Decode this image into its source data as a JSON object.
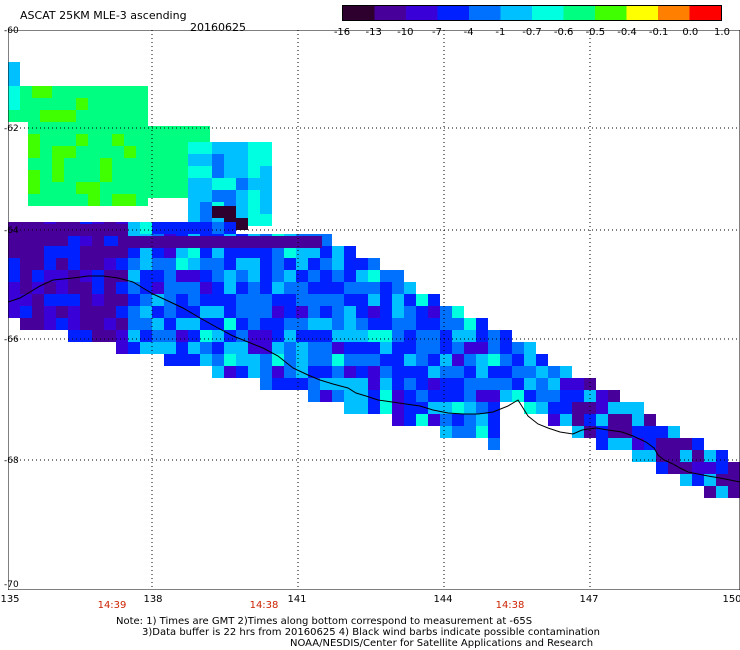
{
  "header": {
    "title": "ASCAT 25KM MLE-3 ascending",
    "date": "20160625"
  },
  "colorbar": {
    "colors": [
      "#2d002d",
      "#48009a",
      "#3a00d8",
      "#0020ff",
      "#0070ff",
      "#00c0ff",
      "#00ffe0",
      "#00ff80",
      "#40ff00",
      "#ffff00",
      "#ff8000",
      "#ff0000"
    ],
    "labels": [
      "-16",
      "-13",
      "-10",
      "-7",
      "-4",
      "-1",
      "-0.7",
      "-0.6",
      "-0.5",
      "-0.4",
      "-0.1",
      "0.0",
      "1.0"
    ]
  },
  "axes": {
    "lat_labels": [
      "-60",
      "-62",
      "-64",
      "-66",
      "-68",
      "-70"
    ],
    "lon_labels": [
      "135",
      "138",
      "141",
      "144",
      "147",
      "150"
    ],
    "xlim": [
      135,
      150
    ],
    "ylim": [
      -70,
      -60
    ],
    "grid": true
  },
  "pass_times": [
    "14:39",
    "14:38",
    "14:38"
  ],
  "notes": {
    "line1": "Note: 1) Times are GMT 2)Times along bottom correspond to measurement at -65S",
    "line2": "3)Data buffer is 22 hrs from 20160625 4) Black wind barbs indicate possible contamination",
    "line3": "NOAA/NESDIS/Center for Satellite Applications and Research"
  }
}
